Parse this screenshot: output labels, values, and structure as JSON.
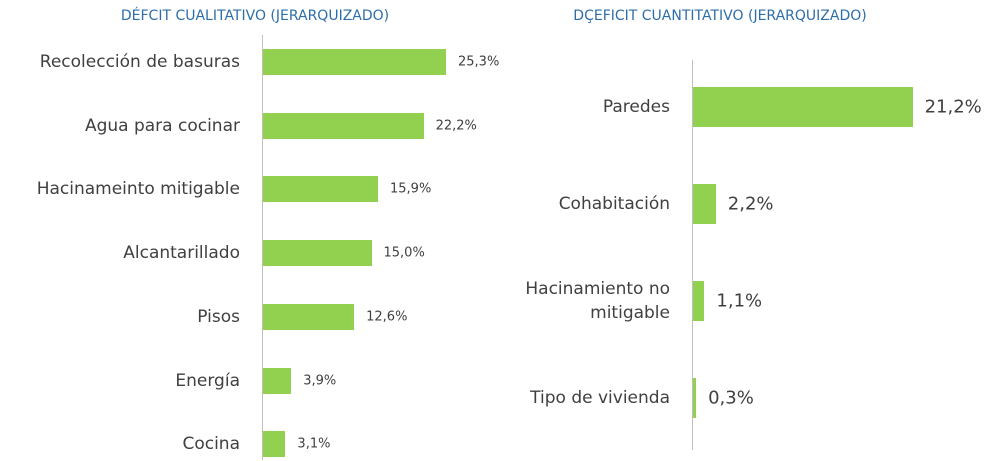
{
  "chart_data": [
    {
      "type": "hbar",
      "title": "DÉFCIT CUALITATIVO (JERARQUIZADO)",
      "categories": [
        "Recolección de basuras",
        "Agua para cocinar",
        "Hacinameinto mitigable",
        "Alcantarillado",
        "Pisos",
        "Energía",
        "Cocina"
      ],
      "values": [
        25.3,
        22.2,
        15.9,
        15.0,
        12.6,
        3.9,
        3.1
      ],
      "value_labels": [
        "25,3%",
        "22,2%",
        "15,9%",
        "15,0%",
        "12,6%",
        "3,9%",
        "3,1%"
      ],
      "color": "#92d050",
      "xlim": [
        0,
        30
      ]
    },
    {
      "type": "hbar",
      "title": "DÇEFICIT CUANTITATIVO (JERARQUIZADO)",
      "categories": [
        "Paredes",
        "Cohabitación",
        "Hacinamiento no mitigable",
        "Tipo de vivienda"
      ],
      "values": [
        21.2,
        2.2,
        1.1,
        0.3
      ],
      "value_labels": [
        "21,2%",
        "2,2%",
        "1,1%",
        "0,3%"
      ],
      "color": "#92d050",
      "xlim": [
        0,
        28
      ]
    }
  ]
}
